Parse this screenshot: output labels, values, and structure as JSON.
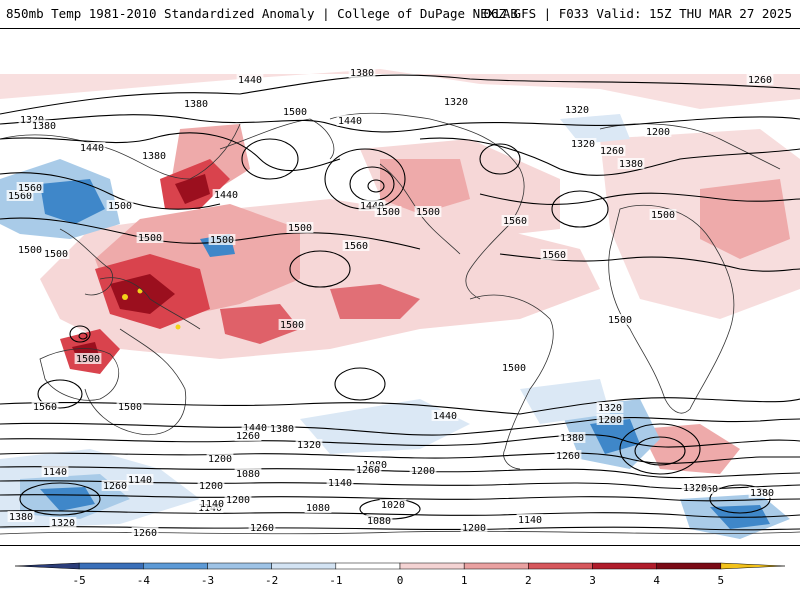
{
  "header": {
    "title": "850mb Temp 1981-2010 Standardized Anomaly | College of DuPage NEXLAB",
    "run_info": "06Z GFS | F033 Valid: 15Z THU MAR 27 2025"
  },
  "colors": {
    "blue_dark": "#2c4f8a",
    "blue_mid": "#3f87c9",
    "blue_light": "#a9cbe8",
    "blue_pale": "#dbe8f5",
    "red_pale": "#f6d7d7",
    "red_light": "#eeaaaa",
    "red_mid": "#d9434d",
    "red_dark": "#9b0f1e",
    "yellow": "#f3d31a",
    "purple": "#7b4fb5",
    "contour": "#000000",
    "coast": "#333333"
  },
  "contour_labels": [
    {
      "text": "1380"
    },
    {
      "text": "1440"
    },
    {
      "text": "1260"
    },
    {
      "text": "1320"
    },
    {
      "text": "1380"
    },
    {
      "text": "1500"
    },
    {
      "text": "1440"
    },
    {
      "text": "1320"
    },
    {
      "text": "1320"
    },
    {
      "text": "1200"
    },
    {
      "text": "1320"
    },
    {
      "text": "1380"
    },
    {
      "text": "1440"
    },
    {
      "text": "1380"
    },
    {
      "text": "1560"
    },
    {
      "text": "1500"
    },
    {
      "text": "1440"
    },
    {
      "text": "1500"
    },
    {
      "text": "1560"
    },
    {
      "text": "1500"
    },
    {
      "text": "1440"
    },
    {
      "text": "1260"
    },
    {
      "text": "1380"
    },
    {
      "text": "1500"
    },
    {
      "text": "1500"
    },
    {
      "text": "1500"
    },
    {
      "text": "1560"
    },
    {
      "text": "1500"
    },
    {
      "text": "1500"
    },
    {
      "text": "1500"
    },
    {
      "text": "1560"
    },
    {
      "text": "1560"
    },
    {
      "text": "1500"
    },
    {
      "text": "1500"
    },
    {
      "text": "1500"
    },
    {
      "text": "1500"
    },
    {
      "text": "1560"
    },
    {
      "text": "1500"
    },
    {
      "text": "1440"
    },
    {
      "text": "1320"
    },
    {
      "text": "1200"
    },
    {
      "text": "1380"
    },
    {
      "text": "1260"
    },
    {
      "text": "1440"
    },
    {
      "text": "1380"
    },
    {
      "text": "1320"
    },
    {
      "text": "1260"
    },
    {
      "text": "1140"
    },
    {
      "text": "1200"
    },
    {
      "text": "1080"
    },
    {
      "text": "1260"
    },
    {
      "text": "1200"
    },
    {
      "text": "1140"
    },
    {
      "text": "1080"
    },
    {
      "text": "1200"
    },
    {
      "text": "1140"
    },
    {
      "text": "1080"
    },
    {
      "text": "1140"
    },
    {
      "text": "1260"
    },
    {
      "text": "1200"
    },
    {
      "text": "1260"
    },
    {
      "text": "1320"
    },
    {
      "text": "1380"
    },
    {
      "text": "1140"
    },
    {
      "text": "1020"
    },
    {
      "text": "1380"
    },
    {
      "text": "1320"
    },
    {
      "text": "1260"
    },
    {
      "text": "1260"
    },
    {
      "text": "1080"
    },
    {
      "text": "1200"
    },
    {
      "text": "1140"
    }
  ],
  "colorbar": {
    "ticks": [
      "-5",
      "-4",
      "-3",
      "-2",
      "-1",
      "0",
      "1",
      "2",
      "3",
      "4",
      "5"
    ],
    "colors": [
      "#2c3e7a",
      "#3a6fb8",
      "#5d9ad6",
      "#9ec3e6",
      "#d3e3f3",
      "#ffffff",
      "#f4d3d3",
      "#e9a1a1",
      "#d6575c",
      "#b01c2b",
      "#7a0a16",
      "#f3c21a"
    ]
  }
}
